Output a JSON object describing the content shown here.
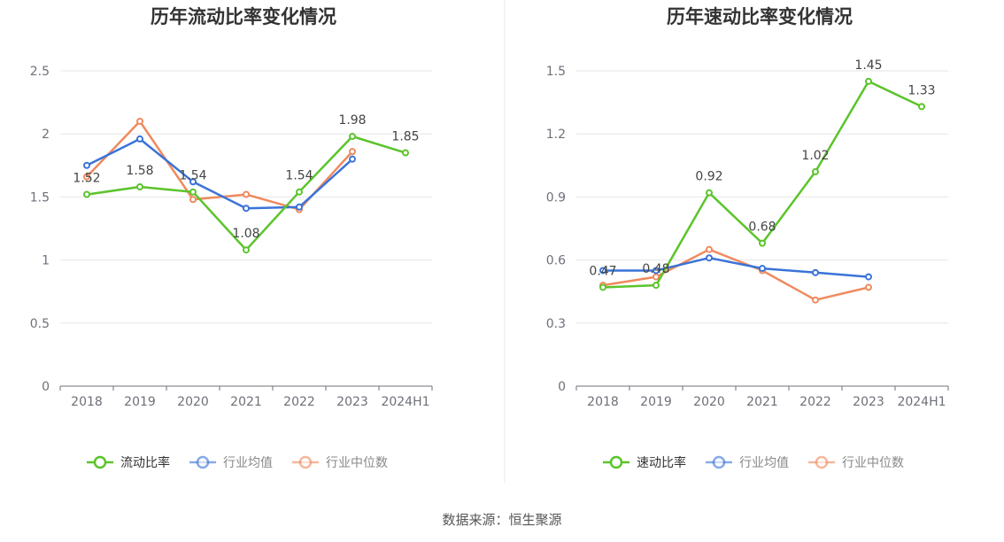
{
  "source": "数据来源：恒生聚源",
  "colors": {
    "main": "#5bc42b",
    "avg": "#3a73d8",
    "median": "#ef8a5e"
  },
  "chart_data": [
    {
      "type": "line",
      "title": "历年流动比率变化情况",
      "categories": [
        "2018",
        "2019",
        "2020",
        "2021",
        "2022",
        "2023",
        "2024H1"
      ],
      "ylim": [
        0,
        2.5
      ],
      "yticks": [
        "0",
        "0.5",
        "1",
        "1.5",
        "2",
        "2.5"
      ],
      "ytick_values": [
        0,
        0.5,
        1,
        1.5,
        2,
        2.5
      ],
      "grid": true,
      "legend": "bottom",
      "series": [
        {
          "name": "流动比率",
          "color": "#5bc42b",
          "values": [
            1.52,
            1.58,
            1.54,
            1.08,
            1.54,
            1.98,
            1.85
          ],
          "labels": [
            "1.52",
            "1.58",
            "1.54",
            "1.08",
            "1.54",
            "1.98",
            "1.85"
          ]
        },
        {
          "name": "行业均值",
          "color": "#3a73d8",
          "values": [
            1.75,
            1.96,
            1.62,
            1.41,
            1.42,
            1.8,
            null
          ]
        },
        {
          "name": "行业中位数",
          "color": "#ef8a5e",
          "values": [
            1.66,
            2.1,
            1.48,
            1.52,
            1.4,
            1.86,
            null
          ]
        }
      ]
    },
    {
      "type": "line",
      "title": "历年速动比率变化情况",
      "categories": [
        "2018",
        "2019",
        "2020",
        "2021",
        "2022",
        "2023",
        "2024H1"
      ],
      "ylim": [
        0,
        1.5
      ],
      "yticks": [
        "0",
        "0.3",
        "0.6",
        "0.9",
        "1.2",
        "1.5"
      ],
      "ytick_values": [
        0,
        0.3,
        0.6,
        0.9,
        1.2,
        1.5
      ],
      "grid": true,
      "legend": "bottom",
      "series": [
        {
          "name": "速动比率",
          "color": "#5bc42b",
          "values": [
            0.47,
            0.48,
            0.92,
            0.68,
            1.02,
            1.45,
            1.33
          ],
          "labels": [
            "0.47",
            "0.48",
            "0.92",
            "0.68",
            "1.02",
            "1.45",
            "1.33"
          ]
        },
        {
          "name": "行业均值",
          "color": "#3a73d8",
          "values": [
            0.55,
            0.55,
            0.61,
            0.56,
            0.54,
            0.52,
            null
          ]
        },
        {
          "name": "行业中位数",
          "color": "#ef8a5e",
          "values": [
            0.48,
            0.52,
            0.65,
            0.55,
            0.41,
            0.47,
            null
          ]
        }
      ]
    }
  ]
}
